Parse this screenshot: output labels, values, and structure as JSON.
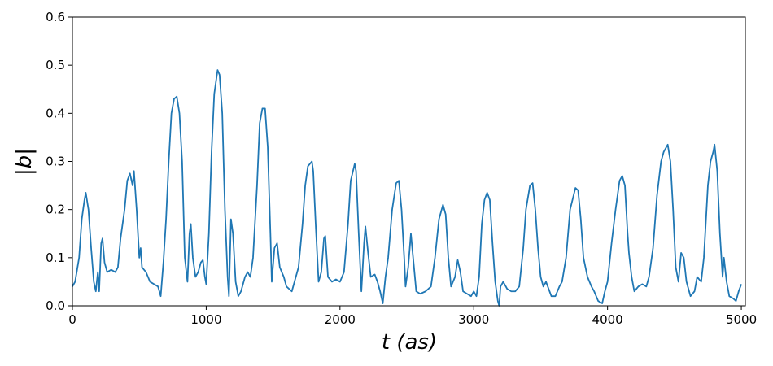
{
  "chart_data": {
    "type": "line",
    "xlabel": "t (as)",
    "ylabel": "|b|",
    "xlim": [
      0,
      5030
    ],
    "xticks": [
      0,
      1000,
      2000,
      3000,
      4000,
      5000
    ],
    "ylim": [
      0,
      0.6
    ],
    "yticks": [
      {
        "value": 0,
        "label": "0.0"
      },
      0.1,
      0.2,
      0.3,
      0.4,
      0.5,
      0.6
    ],
    "x": [
      0,
      20,
      50,
      70,
      90,
      100,
      120,
      140,
      160,
      175,
      190,
      200,
      215,
      225,
      240,
      260,
      290,
      320,
      340,
      360,
      390,
      410,
      430,
      450,
      460,
      480,
      500,
      510,
      520,
      550,
      580,
      610,
      640,
      660,
      680,
      700,
      720,
      740,
      760,
      780,
      800,
      820,
      840,
      860,
      875,
      885,
      900,
      920,
      940,
      960,
      975,
      990,
      1000,
      1020,
      1040,
      1060,
      1085,
      1100,
      1120,
      1140,
      1160,
      1170,
      1185,
      1200,
      1220,
      1240,
      1260,
      1290,
      1310,
      1330,
      1350,
      1380,
      1400,
      1420,
      1440,
      1460,
      1480,
      1490,
      1510,
      1530,
      1550,
      1580,
      1600,
      1640,
      1660,
      1690,
      1720,
      1740,
      1760,
      1790,
      1800,
      1820,
      1840,
      1860,
      1880,
      1890,
      1910,
      1940,
      1970,
      2000,
      2030,
      2060,
      2080,
      2110,
      2120,
      2140,
      2160,
      2180,
      2190,
      2210,
      2230,
      2260,
      2280,
      2300,
      2320,
      2340,
      2360,
      2390,
      2420,
      2440,
      2460,
      2480,
      2490,
      2510,
      2530,
      2550,
      2570,
      2600,
      2640,
      2680,
      2710,
      2740,
      2770,
      2790,
      2810,
      2830,
      2860,
      2880,
      2900,
      2920,
      2950,
      2980,
      3000,
      3020,
      3040,
      3060,
      3080,
      3100,
      3120,
      3140,
      3160,
      3180,
      3190,
      3200,
      3220,
      3250,
      3280,
      3310,
      3340,
      3370,
      3390,
      3420,
      3440,
      3460,
      3480,
      3500,
      3520,
      3540,
      3560,
      3580,
      3610,
      3640,
      3660,
      3690,
      3720,
      3760,
      3780,
      3800,
      3820,
      3850,
      3880,
      3900,
      3930,
      3960,
      3980,
      4000,
      4030,
      4060,
      4090,
      4110,
      4130,
      4150,
      4160,
      4180,
      4200,
      4230,
      4260,
      4290,
      4310,
      4340,
      4370,
      4400,
      4420,
      4450,
      4470,
      4490,
      4510,
      4530,
      4550,
      4570,
      4590,
      4620,
      4650,
      4670,
      4700,
      4720,
      4750,
      4770,
      4790,
      4800,
      4820,
      4840,
      4860,
      4870,
      4890,
      4910,
      4940,
      4960,
      4980,
      5000
    ],
    "series": [
      {
        "color": "#1f77b4",
        "values": [
          0.04,
          0.05,
          0.1,
          0.18,
          0.22,
          0.235,
          0.2,
          0.12,
          0.05,
          0.03,
          0.07,
          0.03,
          0.13,
          0.14,
          0.09,
          0.07,
          0.075,
          0.07,
          0.08,
          0.14,
          0.2,
          0.26,
          0.275,
          0.25,
          0.28,
          0.2,
          0.1,
          0.12,
          0.08,
          0.07,
          0.05,
          0.045,
          0.04,
          0.02,
          0.09,
          0.18,
          0.3,
          0.4,
          0.43,
          0.435,
          0.4,
          0.3,
          0.1,
          0.05,
          0.15,
          0.17,
          0.1,
          0.06,
          0.07,
          0.09,
          0.095,
          0.06,
          0.045,
          0.15,
          0.32,
          0.44,
          0.49,
          0.48,
          0.4,
          0.2,
          0.06,
          0.02,
          0.18,
          0.15,
          0.05,
          0.02,
          0.03,
          0.06,
          0.07,
          0.06,
          0.1,
          0.25,
          0.38,
          0.41,
          0.41,
          0.33,
          0.15,
          0.05,
          0.12,
          0.13,
          0.08,
          0.06,
          0.04,
          0.03,
          0.05,
          0.08,
          0.17,
          0.25,
          0.29,
          0.3,
          0.28,
          0.16,
          0.05,
          0.07,
          0.14,
          0.145,
          0.06,
          0.05,
          0.055,
          0.05,
          0.07,
          0.17,
          0.26,
          0.295,
          0.28,
          0.15,
          0.03,
          0.13,
          0.165,
          0.11,
          0.06,
          0.065,
          0.05,
          0.03,
          0.005,
          0.06,
          0.1,
          0.2,
          0.255,
          0.26,
          0.2,
          0.1,
          0.04,
          0.08,
          0.15,
          0.09,
          0.03,
          0.025,
          0.03,
          0.04,
          0.1,
          0.18,
          0.21,
          0.19,
          0.1,
          0.04,
          0.06,
          0.095,
          0.07,
          0.03,
          0.025,
          0.02,
          0.03,
          0.02,
          0.06,
          0.17,
          0.22,
          0.235,
          0.22,
          0.13,
          0.05,
          0.01,
          0.0,
          0.04,
          0.05,
          0.035,
          0.03,
          0.03,
          0.04,
          0.12,
          0.2,
          0.25,
          0.255,
          0.2,
          0.12,
          0.06,
          0.04,
          0.05,
          0.035,
          0.02,
          0.02,
          0.04,
          0.05,
          0.1,
          0.2,
          0.245,
          0.24,
          0.18,
          0.1,
          0.06,
          0.04,
          0.03,
          0.01,
          0.005,
          0.03,
          0.05,
          0.13,
          0.2,
          0.26,
          0.27,
          0.25,
          0.15,
          0.11,
          0.06,
          0.03,
          0.04,
          0.045,
          0.04,
          0.06,
          0.12,
          0.23,
          0.3,
          0.32,
          0.335,
          0.3,
          0.2,
          0.08,
          0.05,
          0.11,
          0.1,
          0.05,
          0.02,
          0.03,
          0.06,
          0.05,
          0.1,
          0.25,
          0.3,
          0.32,
          0.335,
          0.28,
          0.15,
          0.06,
          0.1,
          0.05,
          0.02,
          0.015,
          0.01,
          0.03,
          0.045
        ]
      }
    ]
  }
}
